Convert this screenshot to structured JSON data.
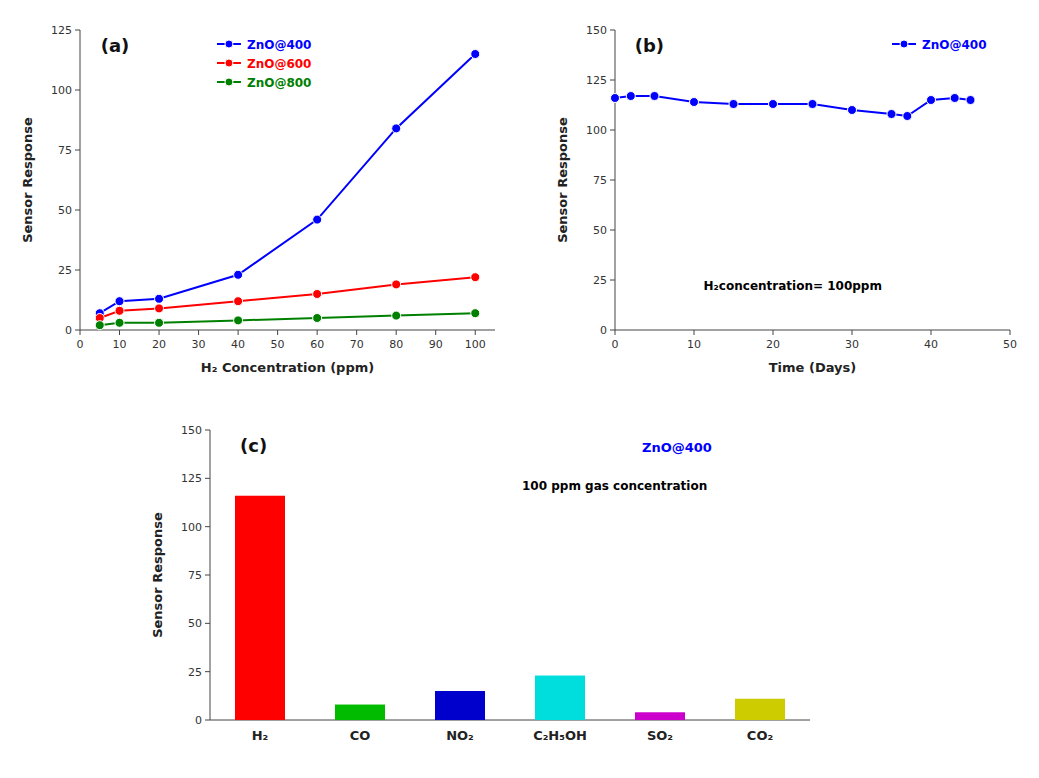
{
  "chart_data": [
    {
      "type": "line",
      "title": "(a)",
      "xlabel": "H₂ Concentration (ppm)",
      "ylabel": "Sensor Response",
      "x": [
        5,
        10,
        20,
        40,
        60,
        80,
        100
      ],
      "series": [
        {
          "name": "ZnO@400",
          "color": "#0000ff",
          "values": [
            7,
            12,
            13,
            23,
            46,
            84,
            115
          ]
        },
        {
          "name": "ZnO@600",
          "color": "#ff0000",
          "values": [
            5,
            8,
            9,
            12,
            15,
            19,
            22
          ]
        },
        {
          "name": "ZnO@800",
          "color": "#008000",
          "values": [
            2,
            3,
            3,
            4,
            5,
            6,
            7
          ]
        }
      ],
      "xlim": [
        0,
        105
      ],
      "xticks": [
        0,
        10,
        20,
        30,
        40,
        50,
        60,
        70,
        80,
        90,
        100
      ],
      "ylim": [
        0,
        125
      ],
      "yticks": [
        0,
        25,
        50,
        75,
        100,
        125
      ],
      "legend": "upper left",
      "marker": "circle",
      "grid": false
    },
    {
      "type": "line",
      "title": "(b)",
      "xlabel": "Time (Days)",
      "ylabel": "Sensor Response",
      "annotations": [
        "H₂concentration= 100ppm"
      ],
      "x": [
        0,
        2,
        5,
        10,
        15,
        20,
        25,
        30,
        35,
        37,
        40,
        43,
        45
      ],
      "series": [
        {
          "name": "ZnO@400",
          "color": "#0000ff",
          "values": [
            116,
            117,
            117,
            114,
            113,
            113,
            113,
            110,
            108,
            107,
            115,
            116,
            115
          ]
        }
      ],
      "xlim": [
        0,
        50
      ],
      "xticks": [
        0,
        10,
        20,
        30,
        40,
        50
      ],
      "ylim": [
        0,
        150
      ],
      "yticks": [
        0,
        25,
        50,
        75,
        100,
        125,
        150
      ],
      "legend": "upper right",
      "marker": "circle",
      "grid": false
    },
    {
      "type": "bar",
      "title": "(c)",
      "ylabel": "Sensor Response",
      "annotations": [
        "ZnO@400",
        "100 ppm gas concentration"
      ],
      "categories": [
        "H₂",
        "CO",
        "NO₂",
        "C₂H₅OH",
        "SO₂",
        "CO₂"
      ],
      "values": [
        116,
        8,
        15,
        23,
        4,
        11
      ],
      "colors": [
        "#ff0000",
        "#00bb00",
        "#0000cc",
        "#00dddd",
        "#cc00cc",
        "#cccc00"
      ],
      "ylim": [
        0,
        150
      ],
      "yticks": [
        0,
        25,
        50,
        75,
        100,
        125,
        150
      ],
      "grid": false
    }
  ]
}
